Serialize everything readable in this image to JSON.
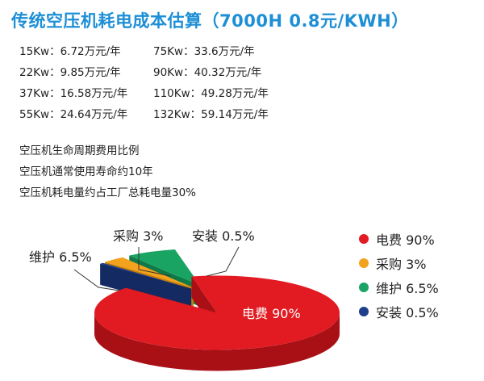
{
  "title": "传统空压机耗电成本估算（7000H 0.8元/KWH）",
  "rates": [
    {
      "left": "15Kw：6.72万元/年",
      "right": "75Kw：33.6万元/年"
    },
    {
      "left": "22Kw：9.85万元/年",
      "right": "90Kw：40.32万元/年"
    },
    {
      "left": "37Kw：16.58万元/年",
      "right": "110Kw：49.28万元/年"
    },
    {
      "left": "55Kw：24.64万元/年",
      "right": "132Kw：59.14万元/年"
    }
  ],
  "notes": [
    "空压机生命周期费用比例",
    "空压机通常使用寿命约10年",
    "空压机耗电量约占工厂总耗电量30%"
  ],
  "chart_data": {
    "type": "pie",
    "style": "3d-exploded",
    "legend_position": "right",
    "series": [
      {
        "name": "电费",
        "value": 90,
        "label": "电费 90%",
        "legend": "电费 90%",
        "color": "#e21b22",
        "side": "#a81016"
      },
      {
        "name": "采购",
        "value": 3,
        "label": "采购 3%",
        "legend": "采购 3%",
        "color": "#f2a21d",
        "side": "#c57d0b"
      },
      {
        "name": "维护",
        "value": 6.5,
        "label": "维护 6.5%",
        "legend": "维护 6.5%",
        "color": "#1aa464",
        "side": "#0f7a47"
      },
      {
        "name": "安装",
        "value": 0.5,
        "label": "安装 0.5%",
        "legend": "安装 0.5%",
        "color": "#1f3e8c",
        "side": "#142a62"
      }
    ]
  }
}
